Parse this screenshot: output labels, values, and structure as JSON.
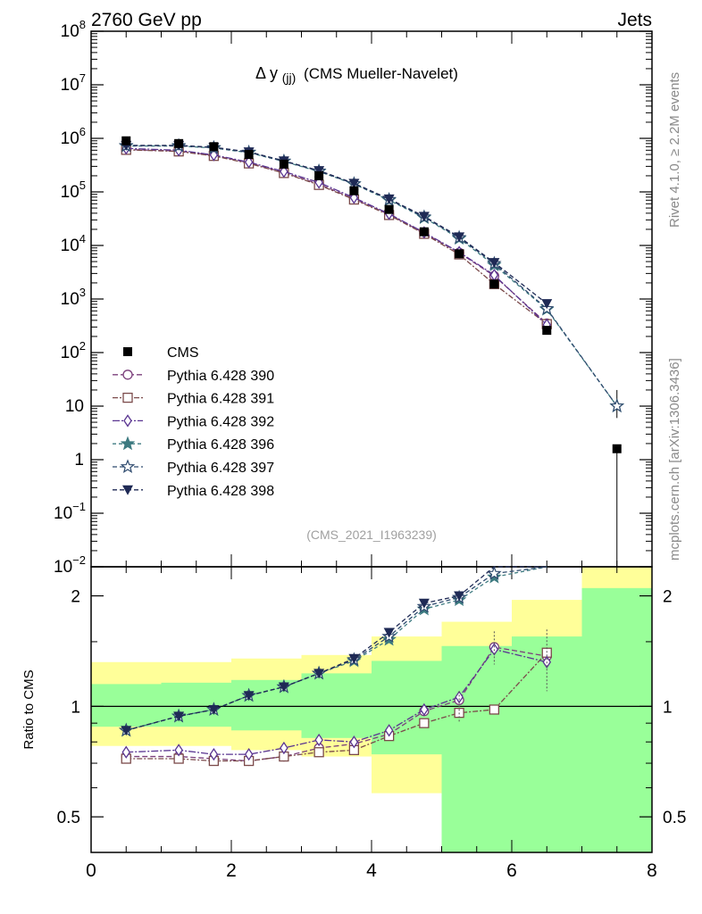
{
  "header": {
    "left": "2760 GeV pp",
    "right": "Jets"
  },
  "side_labels": {
    "top": "Rivet 4.1.0, ≥ 2.2M events",
    "bottom": "mcplots.cern.ch [arXiv:1306.3436]"
  },
  "chart_data": {
    "type": "line",
    "title_main": "Δ y",
    "title_sub": "(jj)",
    "title_rest": "(CMS Mueller-Navelet)",
    "watermark": "(CMS_2021_I1963239)",
    "ratio_ylabel": "Ratio to CMS",
    "x_ticks": [
      "0",
      "2",
      "4",
      "6",
      "8"
    ],
    "y_ticks": [
      "10^-2",
      "10^-1",
      "1",
      "10",
      "10^2",
      "10^3",
      "10^4",
      "10^5",
      "10^6",
      "10^7",
      "10^8"
    ],
    "ratio_ticks": [
      "0.5",
      "1",
      "2"
    ],
    "xlim": [
      0,
      8
    ],
    "ylim": [
      0.01,
      100000000
    ],
    "ratio_ylim": [
      0.4,
      2.4
    ],
    "x": [
      0.5,
      1.25,
      1.75,
      2.25,
      2.75,
      3.25,
      3.75,
      4.25,
      4.75,
      5.25,
      5.75,
      6.5,
      7.5
    ],
    "data": {
      "name": "CMS",
      "values": [
        900000,
        800000,
        700000,
        500000,
        330000,
        200000,
        105000,
        47000,
        18000,
        7000,
        1900,
        260,
        1.6
      ]
    },
    "band_edges": [
      0,
      1,
      2,
      3,
      4,
      5,
      6,
      7,
      8
    ],
    "band_yellow": [
      [
        0.78,
        1.32
      ],
      [
        0.78,
        1.32
      ],
      [
        0.76,
        1.35
      ],
      [
        0.73,
        1.38
      ],
      [
        0.58,
        1.55
      ],
      [
        0.38,
        1.7
      ],
      [
        0.38,
        1.95
      ],
      [
        0.38,
        2.4
      ]
    ],
    "band_green": [
      [
        0.88,
        1.15
      ],
      [
        0.88,
        1.16
      ],
      [
        0.86,
        1.18
      ],
      [
        0.82,
        1.23
      ],
      [
        0.74,
        1.33
      ],
      [
        0.38,
        1.46
      ],
      [
        0.38,
        1.55
      ],
      [
        0.38,
        2.1
      ]
    ],
    "series": [
      {
        "name": "Pythia 6.428 390",
        "color": "#7b3f7b",
        "marker": "circle",
        "dash": "6,3",
        "values": [
          620000,
          580000,
          480000,
          350000,
          230000,
          140000,
          74000,
          38000,
          17000,
          7300,
          2700,
          350,
          null
        ],
        "ratio": [
          0.73,
          0.73,
          0.72,
          0.71,
          0.73,
          0.77,
          0.79,
          0.84,
          0.97,
          1.04,
          1.45,
          1.37,
          null
        ]
      },
      {
        "name": "Pythia 6.428 391",
        "color": "#7b4a4a",
        "marker": "square",
        "dash": "6,2,2,2",
        "values": [
          610000,
          570000,
          470000,
          340000,
          225000,
          135000,
          72000,
          37000,
          16500,
          6800,
          1900,
          340,
          null
        ],
        "ratio": [
          0.72,
          0.72,
          0.71,
          0.71,
          0.73,
          0.75,
          0.76,
          0.83,
          0.9,
          0.96,
          0.98,
          1.4,
          null
        ]
      },
      {
        "name": "Pythia 6.428 392",
        "color": "#5a3591",
        "marker": "diamond",
        "dash": "8,2,2,2",
        "values": [
          650000,
          600000,
          490000,
          360000,
          240000,
          150000,
          78000,
          39000,
          17500,
          7500,
          2800,
          330,
          null
        ],
        "ratio": [
          0.75,
          0.76,
          0.74,
          0.74,
          0.77,
          0.81,
          0.8,
          0.86,
          0.98,
          1.06,
          1.43,
          1.32,
          null
        ]
      },
      {
        "name": "Pythia 6.428 396",
        "color": "#3d7a80",
        "marker": "star",
        "dash": "4,3",
        "values": [
          720000,
          720000,
          660000,
          540000,
          370000,
          240000,
          140000,
          70000,
          33000,
          13500,
          4300,
          640,
          10
        ],
        "ratio": [
          0.86,
          0.94,
          0.98,
          1.07,
          1.13,
          1.23,
          1.33,
          1.52,
          1.84,
          1.95,
          2.25,
          2.5,
          null
        ]
      },
      {
        "name": "Pythia 6.428 397",
        "color": "#2e4a6e",
        "marker": "star-open",
        "dash": "5,3",
        "values": [
          730000,
          730000,
          670000,
          550000,
          375000,
          245000,
          142000,
          72000,
          34000,
          14000,
          4600,
          660,
          10
        ],
        "ratio": [
          0.86,
          0.94,
          0.98,
          1.07,
          1.13,
          1.23,
          1.34,
          1.55,
          1.87,
          1.98,
          2.3,
          2.45,
          null
        ]
      },
      {
        "name": "Pythia 6.428 398",
        "color": "#1f2a55",
        "marker": "triangle-down",
        "dash": "5,3",
        "values": [
          740000,
          740000,
          680000,
          560000,
          380000,
          250000,
          145000,
          74000,
          35000,
          14500,
          4800,
          820,
          null
        ],
        "ratio": [
          0.86,
          0.94,
          0.98,
          1.07,
          1.13,
          1.23,
          1.35,
          1.59,
          1.91,
          2.0,
          2.45,
          2.6,
          null
        ]
      }
    ]
  }
}
